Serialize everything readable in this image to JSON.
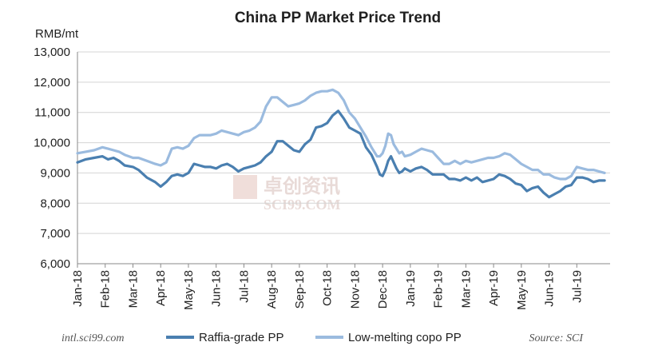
{
  "colors": {
    "raffia": "#4a7fb0",
    "copo": "#9bbbdf",
    "grid": "#d4d4d4",
    "axis": "#8a8a8a",
    "watermark": "#d7bcb7"
  },
  "source_left": "intl.sci99.com",
  "source_right": "Source: SCI",
  "watermark_text": "SCI99.COM",
  "watermark_text_cn": "卓创资讯",
  "chart_data": {
    "type": "line",
    "title": "China PP Market Price Trend",
    "ylabel": "RMB/mt",
    "ylim": [
      6000,
      13000
    ],
    "yticks": [
      "6,000",
      "7,000",
      "8,000",
      "9,000",
      "10,000",
      "11,000",
      "12,000",
      "13,000"
    ],
    "ytick_values": [
      6000,
      7000,
      8000,
      9000,
      10000,
      11000,
      12000,
      13000
    ],
    "xlim": [
      0,
      19.2
    ],
    "x_tick_labels": [
      "Jan-18",
      "Feb-18",
      "Mar-18",
      "Apr-18",
      "May-18",
      "Jun-18",
      "Jul-18",
      "Aug-18",
      "Sep-18",
      "Oct-18",
      "Nov-18",
      "Dec-18",
      "Jan-19",
      "Feb-19",
      "Mar-19",
      "Apr-19",
      "May-19",
      "Jun-19",
      "Jul-19"
    ],
    "x_tick_positions": [
      0,
      1,
      2,
      3,
      4,
      5,
      6,
      7,
      8,
      9,
      10,
      11,
      12,
      13,
      14,
      15,
      16,
      17,
      18
    ],
    "grid": true,
    "legend_position": "bottom",
    "series": [
      {
        "name": "Raffia-grade PP",
        "color": "#4a7fb0",
        "x": [
          0,
          0.3,
          0.6,
          0.9,
          1.1,
          1.3,
          1.5,
          1.7,
          2.0,
          2.2,
          2.5,
          2.8,
          3.0,
          3.2,
          3.4,
          3.6,
          3.8,
          4.0,
          4.2,
          4.4,
          4.6,
          4.8,
          5.0,
          5.2,
          5.4,
          5.6,
          5.8,
          6.0,
          6.2,
          6.4,
          6.6,
          6.8,
          7.0,
          7.2,
          7.4,
          7.6,
          7.8,
          8.0,
          8.2,
          8.4,
          8.6,
          8.8,
          9.0,
          9.2,
          9.4,
          9.6,
          9.8,
          10.0,
          10.2,
          10.4,
          10.6,
          10.8,
          10.9,
          11.0,
          11.1,
          11.2,
          11.3,
          11.4,
          11.5,
          11.6,
          11.7,
          11.8,
          12.0,
          12.2,
          12.4,
          12.6,
          12.8,
          13.0,
          13.2,
          13.4,
          13.6,
          13.8,
          14.0,
          14.2,
          14.4,
          14.6,
          14.8,
          15.0,
          15.2,
          15.4,
          15.6,
          15.8,
          16.0,
          16.2,
          16.4,
          16.6,
          16.8,
          17.0,
          17.2,
          17.4,
          17.6,
          17.8,
          18.0,
          18.2,
          18.4,
          18.6,
          18.8,
          19.0
        ],
        "values": [
          9350,
          9450,
          9500,
          9550,
          9450,
          9500,
          9400,
          9250,
          9200,
          9100,
          8850,
          8700,
          8550,
          8700,
          8900,
          8950,
          8900,
          9000,
          9300,
          9250,
          9200,
          9200,
          9150,
          9250,
          9300,
          9200,
          9050,
          9150,
          9200,
          9250,
          9350,
          9550,
          9700,
          10050,
          10050,
          9900,
          9750,
          9700,
          9950,
          10100,
          10500,
          10550,
          10650,
          10900,
          11050,
          10800,
          10500,
          10400,
          10300,
          9850,
          9600,
          9200,
          8950,
          8900,
          9100,
          9400,
          9550,
          9350,
          9150,
          9000,
          9050,
          9150,
          9050,
          9150,
          9200,
          9100,
          8950,
          8950,
          8950,
          8800,
          8800,
          8750,
          8850,
          8750,
          8850,
          8700,
          8750,
          8800,
          8950,
          8900,
          8800,
          8650,
          8600,
          8400,
          8500,
          8550,
          8350,
          8200,
          8300,
          8400,
          8550,
          8600,
          8850,
          8850,
          8800,
          8700,
          8750,
          8750
        ]
      },
      {
        "name": "Low-melting copo PP",
        "color": "#9bbbdf",
        "x": [
          0,
          0.3,
          0.6,
          0.9,
          1.1,
          1.3,
          1.5,
          1.7,
          2.0,
          2.2,
          2.5,
          2.8,
          3.0,
          3.2,
          3.4,
          3.6,
          3.8,
          4.0,
          4.2,
          4.4,
          4.6,
          4.8,
          5.0,
          5.2,
          5.4,
          5.6,
          5.8,
          6.0,
          6.2,
          6.4,
          6.6,
          6.8,
          7.0,
          7.2,
          7.4,
          7.6,
          7.8,
          8.0,
          8.2,
          8.4,
          8.6,
          8.8,
          9.0,
          9.2,
          9.4,
          9.6,
          9.8,
          10.0,
          10.2,
          10.4,
          10.6,
          10.8,
          10.9,
          11.0,
          11.1,
          11.2,
          11.3,
          11.4,
          11.5,
          11.6,
          11.7,
          11.8,
          12.0,
          12.2,
          12.4,
          12.6,
          12.8,
          13.0,
          13.2,
          13.4,
          13.6,
          13.8,
          14.0,
          14.2,
          14.4,
          14.6,
          14.8,
          15.0,
          15.2,
          15.4,
          15.6,
          15.8,
          16.0,
          16.2,
          16.4,
          16.6,
          16.8,
          17.0,
          17.2,
          17.4,
          17.6,
          17.8,
          18.0,
          18.2,
          18.4,
          18.6,
          18.8,
          19.0
        ],
        "values": [
          9650,
          9700,
          9750,
          9850,
          9800,
          9750,
          9700,
          9600,
          9500,
          9500,
          9400,
          9300,
          9250,
          9350,
          9800,
          9850,
          9800,
          9900,
          10150,
          10250,
          10250,
          10250,
          10300,
          10400,
          10350,
          10300,
          10250,
          10350,
          10400,
          10500,
          10700,
          11200,
          11500,
          11500,
          11350,
          11200,
          11250,
          11300,
          11400,
          11550,
          11650,
          11700,
          11700,
          11750,
          11650,
          11400,
          11000,
          10800,
          10500,
          10200,
          9850,
          9550,
          9550,
          9650,
          9900,
          10300,
          10250,
          9950,
          9800,
          9650,
          9700,
          9550,
          9600,
          9700,
          9800,
          9750,
          9700,
          9500,
          9300,
          9300,
          9400,
          9300,
          9400,
          9350,
          9400,
          9450,
          9500,
          9500,
          9550,
          9650,
          9600,
          9450,
          9300,
          9200,
          9100,
          9100,
          8950,
          8950,
          8850,
          8800,
          8800,
          8900,
          9200,
          9150,
          9100,
          9100,
          9050,
          9000
        ]
      }
    ]
  }
}
